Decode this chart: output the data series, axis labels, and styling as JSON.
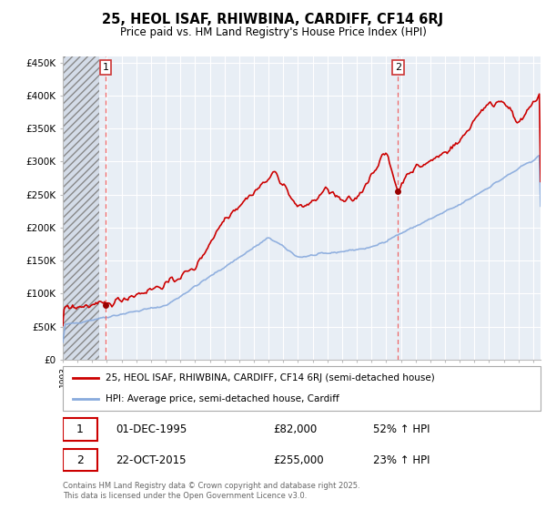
{
  "title": "25, HEOL ISAF, RHIWBINA, CARDIFF, CF14 6RJ",
  "subtitle": "Price paid vs. HM Land Registry's House Price Index (HPI)",
  "ylim": [
    0,
    460000
  ],
  "yticks": [
    0,
    50000,
    100000,
    150000,
    200000,
    250000,
    300000,
    350000,
    400000,
    450000
  ],
  "ytick_labels": [
    "£0",
    "£50K",
    "£100K",
    "£150K",
    "£200K",
    "£250K",
    "£300K",
    "£350K",
    "£400K",
    "£450K"
  ],
  "property_color": "#cc0000",
  "hpi_color": "#88aadd",
  "marker1_year": 1995.92,
  "marker1_value": 82000,
  "marker2_year": 2015.81,
  "marker2_value": 255000,
  "legend_property": "25, HEOL ISAF, RHIWBINA, CARDIFF, CF14 6RJ (semi-detached house)",
  "legend_hpi": "HPI: Average price, semi-detached house, Cardiff",
  "annotation1_date": "01-DEC-1995",
  "annotation1_price": "£82,000",
  "annotation1_hpi": "52% ↑ HPI",
  "annotation2_date": "22-OCT-2015",
  "annotation2_price": "£255,000",
  "annotation2_hpi": "23% ↑ HPI",
  "footer": "Contains HM Land Registry data © Crown copyright and database right 2025.\nThis data is licensed under the Open Government Licence v3.0.",
  "xlim_start": 1993,
  "xlim_end": 2025.5,
  "hatch_end_year": 1995.5,
  "chart_bg": "#e8eef5",
  "hatch_bg": "#d0d8e4"
}
